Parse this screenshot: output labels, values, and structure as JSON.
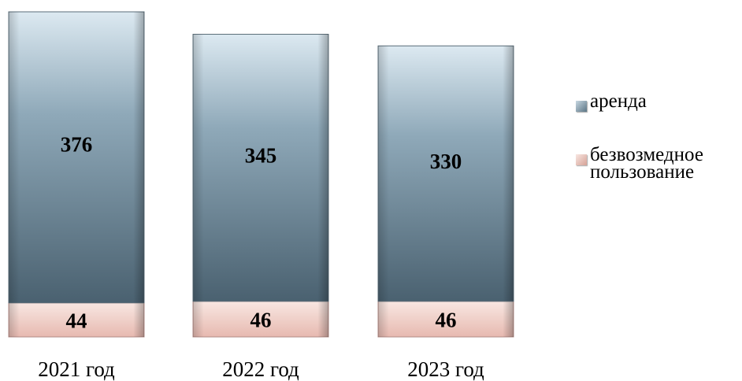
{
  "chart_data": {
    "type": "bar",
    "stacked": true,
    "categories": [
      "2021 год",
      "2022 год",
      "2023 год"
    ],
    "series": [
      {
        "name": "безвозмедное пользование",
        "values": [
          44,
          46,
          46
        ],
        "color": "#eecbc4"
      },
      {
        "name": "аренда",
        "values": [
          376,
          345,
          330
        ],
        "color": "#6d8898"
      }
    ],
    "title": "",
    "xlabel": "",
    "ylabel": "",
    "ylim": [
      0,
      420
    ],
    "grid": false,
    "legend_position": "right"
  },
  "legend": {
    "items": [
      {
        "label": "аренда",
        "color": "#6d8898"
      },
      {
        "label_line1": "безвозмедное",
        "label_line2": "пользование",
        "color": "#eecbc4"
      }
    ]
  }
}
